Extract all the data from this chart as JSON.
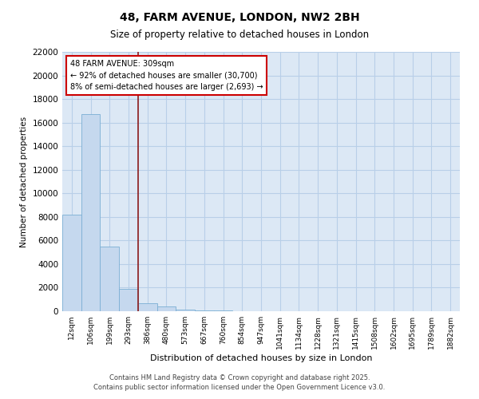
{
  "title": "48, FARM AVENUE, LONDON, NW2 2BH",
  "subtitle": "Size of property relative to detached houses in London",
  "xlabel": "Distribution of detached houses by size in London",
  "ylabel": "Number of detached properties",
  "bar_color": "#c5d8ee",
  "bar_edge_color": "#7bafd4",
  "background_color": "#dce8f5",
  "grid_color": "#b8cfe8",
  "vline_color": "#8b1a1a",
  "vline_position": 3,
  "annotation_box_color": "#cc0000",
  "annotation_text": "48 FARM AVENUE: 309sqm\n← 92% of detached houses are smaller (30,700)\n8% of semi-detached houses are larger (2,693) →",
  "categories": [
    "12sqm",
    "106sqm",
    "199sqm",
    "293sqm",
    "386sqm",
    "480sqm",
    "573sqm",
    "667sqm",
    "760sqm",
    "854sqm",
    "947sqm",
    "1041sqm",
    "1134sqm",
    "1228sqm",
    "1321sqm",
    "1415sqm",
    "1508sqm",
    "1602sqm",
    "1695sqm",
    "1789sqm",
    "1882sqm"
  ],
  "values": [
    8200,
    16700,
    5500,
    1900,
    700,
    400,
    150,
    80,
    50,
    30,
    20,
    10,
    8,
    5,
    3,
    2,
    2,
    1,
    1,
    1,
    1
  ],
  "ylim": [
    0,
    22000
  ],
  "yticks": [
    0,
    2000,
    4000,
    6000,
    8000,
    10000,
    12000,
    14000,
    16000,
    18000,
    20000,
    22000
  ],
  "footer": "Contains HM Land Registry data © Crown copyright and database right 2025.\nContains public sector information licensed under the Open Government Licence v3.0.",
  "fig_width": 6.0,
  "fig_height": 5.0
}
